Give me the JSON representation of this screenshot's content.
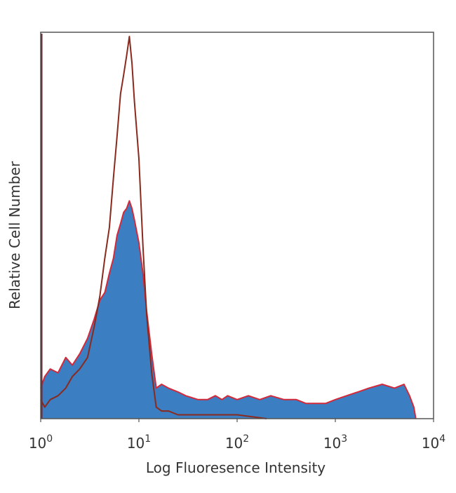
{
  "chart_data": {
    "type": "area",
    "title": "",
    "xlabel": "Log Fluoresence Intensity",
    "ylabel": "Relative Cell Number",
    "xscale": "log",
    "xlim": [
      1,
      10000
    ],
    "ylim": [
      0,
      1
    ],
    "x_ticks": [
      {
        "base": "10",
        "exp": "0"
      },
      {
        "base": "10",
        "exp": "1"
      },
      {
        "base": "10",
        "exp": "2"
      },
      {
        "base": "10",
        "exp": "3"
      },
      {
        "base": "10",
        "exp": "4"
      }
    ],
    "grid": false,
    "legend": "none",
    "series": [
      {
        "style": "filled",
        "fill_color": "#3b7ec2",
        "edge_color": "#d22a3a",
        "x": [
          1.0,
          1.1,
          1.25,
          1.5,
          1.8,
          2.1,
          2.5,
          3.0,
          3.5,
          4.0,
          4.5,
          5.0,
          5.5,
          6.0,
          6.5,
          7.0,
          7.5,
          8.0,
          8.5,
          9.0,
          10.0,
          11.0,
          12.0,
          13.5,
          15.0,
          17.0,
          20.0,
          25.0,
          30.0,
          40.0,
          50.0,
          60.0,
          70.0,
          80.0,
          100.0,
          130.0,
          170.0,
          220.0,
          300.0,
          400.0,
          500.0,
          600.0,
          700.0,
          800.0,
          1000.0,
          1300.0,
          1700.0,
          2200.0,
          3000.0,
          4000.0,
          5000.0,
          5700.0,
          6300.0,
          6600.0
        ],
        "y": [
          0.08,
          0.11,
          0.13,
          0.12,
          0.16,
          0.14,
          0.17,
          0.21,
          0.26,
          0.31,
          0.33,
          0.38,
          0.42,
          0.48,
          0.51,
          0.54,
          0.55,
          0.57,
          0.55,
          0.52,
          0.46,
          0.38,
          0.28,
          0.17,
          0.08,
          0.09,
          0.08,
          0.07,
          0.06,
          0.05,
          0.05,
          0.06,
          0.05,
          0.06,
          0.05,
          0.06,
          0.05,
          0.06,
          0.05,
          0.05,
          0.04,
          0.04,
          0.04,
          0.04,
          0.05,
          0.06,
          0.07,
          0.08,
          0.09,
          0.08,
          0.09,
          0.06,
          0.03,
          0.0
        ]
      },
      {
        "style": "outline",
        "edge_color": "#8a2a1e",
        "x": [
          1.0,
          1.1,
          1.25,
          1.5,
          1.8,
          2.1,
          2.5,
          3.0,
          3.5,
          4.0,
          4.5,
          5.0,
          5.5,
          6.0,
          6.5,
          7.0,
          7.5,
          8.0,
          8.5,
          9.0,
          10.0,
          11.0,
          12.0,
          13.5,
          15.0,
          17.0,
          20.0,
          25.0,
          30.0,
          40.0,
          60.0,
          100.0,
          200.0
        ],
        "y": [
          0.05,
          0.03,
          0.05,
          0.06,
          0.08,
          0.11,
          0.13,
          0.16,
          0.24,
          0.32,
          0.42,
          0.5,
          0.63,
          0.74,
          0.85,
          0.9,
          0.95,
          1.0,
          0.93,
          0.83,
          0.68,
          0.45,
          0.27,
          0.12,
          0.03,
          0.02,
          0.02,
          0.01,
          0.01,
          0.01,
          0.01,
          0.01,
          0.0
        ]
      }
    ]
  }
}
